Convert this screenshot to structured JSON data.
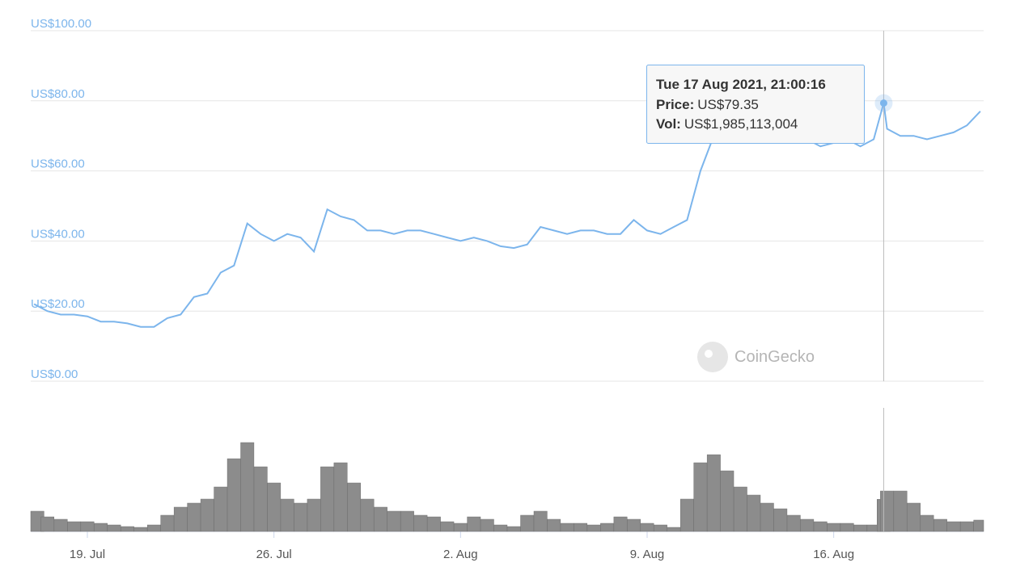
{
  "chart_data": {
    "type": "line",
    "x": [
      "2021-07-17T00:00",
      "2021-07-17T12:00",
      "2021-07-18T00:00",
      "2021-07-18T12:00",
      "2021-07-19T00:00",
      "2021-07-19T12:00",
      "2021-07-20T00:00",
      "2021-07-20T12:00",
      "2021-07-21T00:00",
      "2021-07-21T12:00",
      "2021-07-22T00:00",
      "2021-07-22T12:00",
      "2021-07-23T00:00",
      "2021-07-23T12:00",
      "2021-07-24T00:00",
      "2021-07-24T12:00",
      "2021-07-25T00:00",
      "2021-07-25T12:00",
      "2021-07-26T00:00",
      "2021-07-26T12:00",
      "2021-07-27T00:00",
      "2021-07-27T12:00",
      "2021-07-28T00:00",
      "2021-07-28T12:00",
      "2021-07-29T00:00",
      "2021-07-29T12:00",
      "2021-07-30T00:00",
      "2021-07-30T12:00",
      "2021-07-31T00:00",
      "2021-07-31T12:00",
      "2021-08-01T00:00",
      "2021-08-01T12:00",
      "2021-08-02T00:00",
      "2021-08-02T12:00",
      "2021-08-03T00:00",
      "2021-08-03T12:00",
      "2021-08-04T00:00",
      "2021-08-04T12:00",
      "2021-08-05T00:00",
      "2021-08-05T12:00",
      "2021-08-06T00:00",
      "2021-08-06T12:00",
      "2021-08-07T00:00",
      "2021-08-07T12:00",
      "2021-08-08T00:00",
      "2021-08-08T12:00",
      "2021-08-09T00:00",
      "2021-08-09T12:00",
      "2021-08-10T00:00",
      "2021-08-10T12:00",
      "2021-08-11T00:00",
      "2021-08-11T12:00",
      "2021-08-12T00:00",
      "2021-08-12T12:00",
      "2021-08-13T00:00",
      "2021-08-13T12:00",
      "2021-08-14T00:00",
      "2021-08-14T12:00",
      "2021-08-15T00:00",
      "2021-08-15T12:00",
      "2021-08-16T00:00",
      "2021-08-16T12:00",
      "2021-08-17T00:00",
      "2021-08-17T12:00",
      "2021-08-17T21:00",
      "2021-08-18T00:00",
      "2021-08-18T12:00",
      "2021-08-19T00:00",
      "2021-08-19T12:00",
      "2021-08-20T00:00",
      "2021-08-20T12:00",
      "2021-08-21T00:00",
      "2021-08-21T12:00"
    ],
    "xlim": [
      "2021-07-16T21:00",
      "2021-08-21T15:00"
    ],
    "xticks": [
      {
        "value": "2021-07-19T00:00",
        "label": "19. Jul"
      },
      {
        "value": "2021-07-26T00:00",
        "label": "26. Jul"
      },
      {
        "value": "2021-08-02T00:00",
        "label": "2. Aug"
      },
      {
        "value": "2021-08-09T00:00",
        "label": "9. Aug"
      },
      {
        "value": "2021-08-16T00:00",
        "label": "16. Aug"
      }
    ],
    "ylim": [
      0,
      100
    ],
    "yticks": [
      {
        "value": 0,
        "label": "US$0.00"
      },
      {
        "value": 20,
        "label": "US$20.00"
      },
      {
        "value": 40,
        "label": "US$40.00"
      },
      {
        "value": 60,
        "label": "US$60.00"
      },
      {
        "value": 80,
        "label": "US$80.00"
      },
      {
        "value": 100,
        "label": "US$100.00"
      }
    ],
    "y2lim": [
      0,
      7650000000
    ],
    "grid": true,
    "series": [
      {
        "name": "Price:",
        "color": "#7cb5ec",
        "values": [
          22,
          20,
          19,
          19,
          18.5,
          17,
          17,
          16.5,
          15.5,
          15.5,
          18,
          19,
          24,
          25,
          31,
          33,
          45,
          42,
          40,
          42,
          41,
          37,
          49,
          47,
          46,
          43,
          43,
          42,
          43,
          43,
          42,
          41,
          40,
          41,
          40,
          38.5,
          38,
          39,
          44,
          43,
          42,
          43,
          43,
          42,
          42,
          46,
          43,
          42,
          44,
          46,
          60,
          70,
          68,
          69,
          68,
          69,
          69,
          68,
          69,
          67,
          68,
          69,
          67,
          69,
          79.35,
          72,
          70,
          70,
          69,
          70,
          71,
          73,
          77
        ]
      },
      {
        "name": "Vol:",
        "color": "#8c8c8c",
        "axis": "y2",
        "type": "bar",
        "values": [
          1250000000,
          900000000,
          750000000,
          600000000,
          600000000,
          500000000,
          400000000,
          300000000,
          250000000,
          400000000,
          1000000000,
          1500000000,
          1750000000,
          2000000000,
          2750000000,
          4500000000,
          5500000000,
          4000000000,
          3000000000,
          2000000000,
          1750000000,
          2000000000,
          4000000000,
          4250000000,
          3000000000,
          2000000000,
          1500000000,
          1250000000,
          1250000000,
          1000000000,
          900000000,
          600000000,
          500000000,
          900000000,
          750000000,
          400000000,
          300000000,
          1000000000,
          1250000000,
          750000000,
          500000000,
          500000000,
          400000000,
          500000000,
          900000000,
          750000000,
          500000000,
          400000000,
          250000000,
          2000000000,
          4250000000,
          4750000000,
          3750000000,
          2750000000,
          2250000000,
          1750000000,
          1400000000,
          1000000000,
          750000000,
          600000000,
          500000000,
          500000000,
          400000000,
          400000000,
          1985113004,
          2500000000,
          2500000000,
          1750000000,
          1000000000,
          750000000,
          600000000,
          600000000,
          700000000
        ]
      }
    ],
    "tooltip": {
      "title": "Tue 17 Aug 2021, 21:00:16",
      "price": "US$79.35",
      "vol": "US$1,985,113,004"
    },
    "watermark": "CoinGecko"
  }
}
